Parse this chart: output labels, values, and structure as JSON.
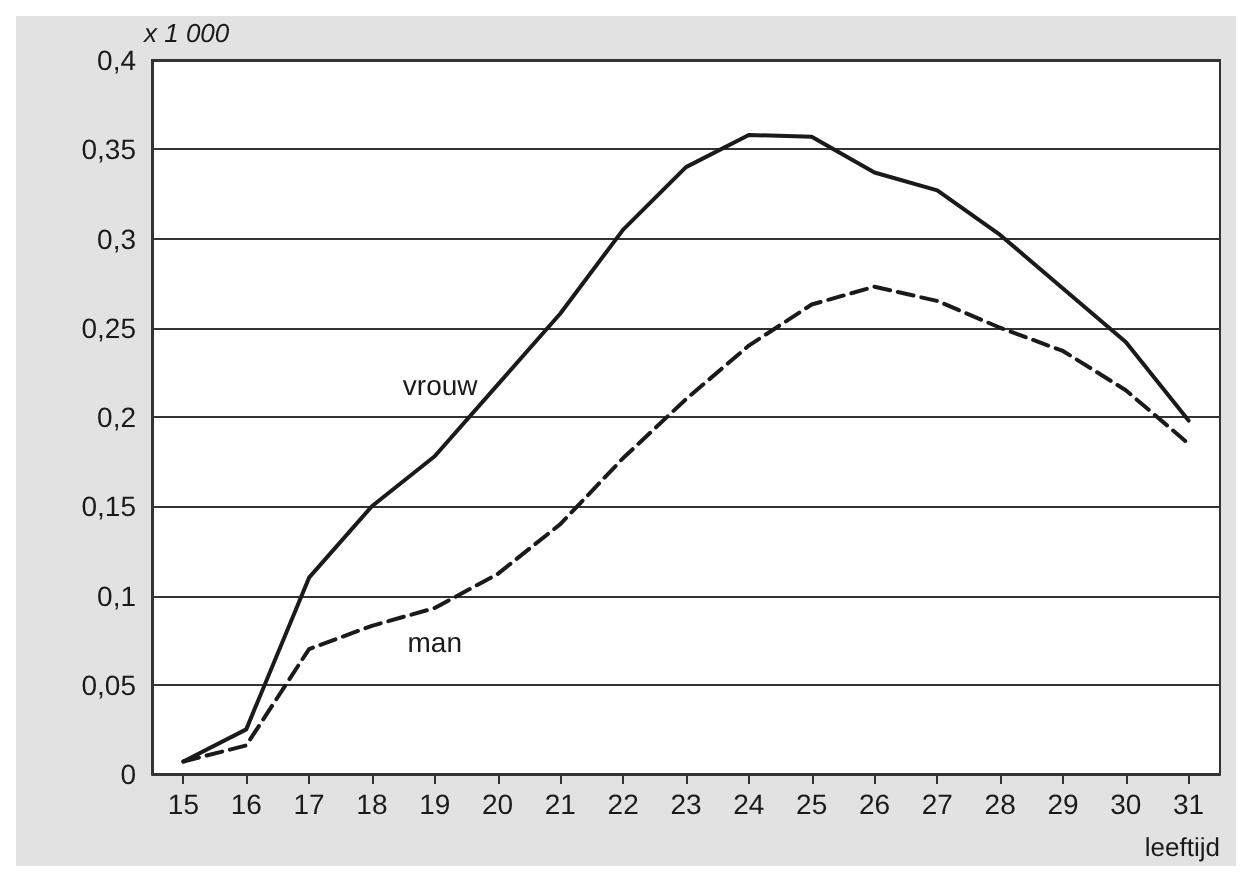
{
  "chart_data": {
    "type": "line",
    "ylabel": "x 1 000",
    "xlabel": "leeftijd",
    "categories": [
      "15",
      "16",
      "17",
      "18",
      "19",
      "20",
      "21",
      "22",
      "23",
      "24",
      "25",
      "26",
      "27",
      "28",
      "29",
      "30",
      "31"
    ],
    "ylim": [
      0,
      0.4
    ],
    "yticks": [
      0,
      {
        "value": 0.05,
        "label": "0,05"
      },
      {
        "value": 0.1,
        "label": "0,1"
      },
      {
        "value": 0.15,
        "label": "0,15"
      },
      {
        "value": 0.2,
        "label": "0,2"
      },
      {
        "value": 0.25,
        "label": "0,25"
      },
      {
        "value": 0.3,
        "label": "0,3"
      },
      {
        "value": 0.35,
        "label": "0,35"
      },
      {
        "value": 0.4,
        "label": "0,4"
      }
    ],
    "grid": "y",
    "legend": false,
    "marker": "none",
    "series": [
      {
        "name": "vrouw",
        "color": "#1a1a1a",
        "line_style": "solid",
        "values": [
          0.007,
          0.025,
          0.11,
          0.15,
          0.178,
          0.218,
          0.258,
          0.305,
          0.34,
          0.358,
          0.357,
          0.337,
          0.327,
          0.302,
          0.272,
          0.242,
          0.198
        ]
      },
      {
        "name": "man",
        "color": "#1a1a1a",
        "line_style": "dashed",
        "values": [
          0.007,
          0.016,
          0.07,
          0.083,
          0.093,
          0.112,
          0.14,
          0.177,
          0.21,
          0.24,
          0.263,
          0.273,
          0.265,
          0.25,
          0.237,
          0.215,
          0.185
        ]
      }
    ]
  }
}
